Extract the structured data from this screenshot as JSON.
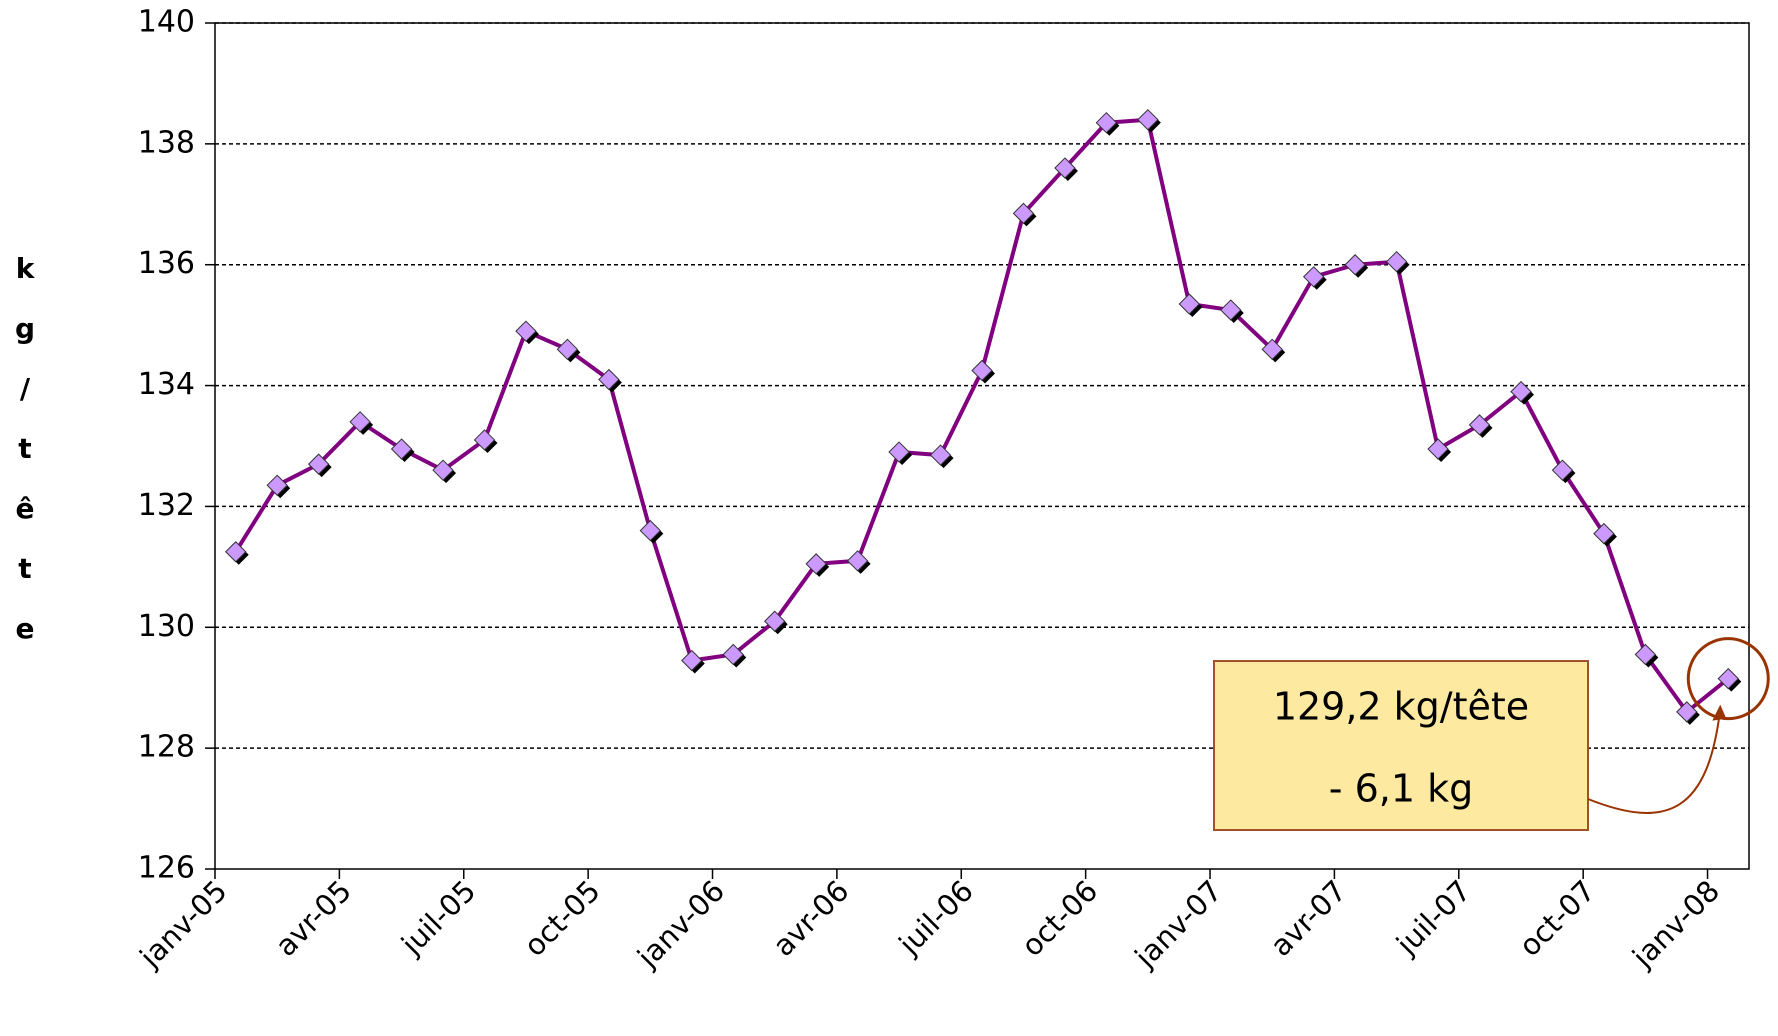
{
  "chart_data": {
    "type": "line",
    "ylabel": "kg/tête",
    "categories": [
      "janv-05",
      null,
      null,
      "avr-05",
      null,
      null,
      "juil-05",
      null,
      null,
      "oct-05",
      null,
      null,
      "janv-06",
      null,
      null,
      "avr-06",
      null,
      null,
      "juil-06",
      null,
      null,
      "oct-06",
      null,
      null,
      "janv-07",
      null,
      null,
      "avr-07",
      null,
      null,
      "juil-07",
      null,
      null,
      "oct-07",
      null,
      null,
      "janv-08"
    ],
    "series": [
      {
        "color": "#800080",
        "marker_color": "#cc99ff",
        "values": [
          131.25,
          132.35,
          132.7,
          133.4,
          132.95,
          132.6,
          133.1,
          134.9,
          134.6,
          134.1,
          131.6,
          129.45,
          129.55,
          130.1,
          131.05,
          131.1,
          132.9,
          132.85,
          134.25,
          136.85,
          137.6,
          138.35,
          138.4,
          135.35,
          135.25,
          134.6,
          135.8,
          136.0,
          136.05,
          132.95,
          133.35,
          133.9,
          132.6,
          131.55,
          129.55,
          128.6,
          129.15
        ]
      }
    ],
    "ylim": [
      126,
      140
    ],
    "yticks": [
      126,
      128,
      130,
      132,
      134,
      136,
      138,
      140
    ],
    "grid": true,
    "annotation": {
      "lines": [
        "129,2 kg/tête",
        "- 6,1 kg"
      ]
    }
  }
}
